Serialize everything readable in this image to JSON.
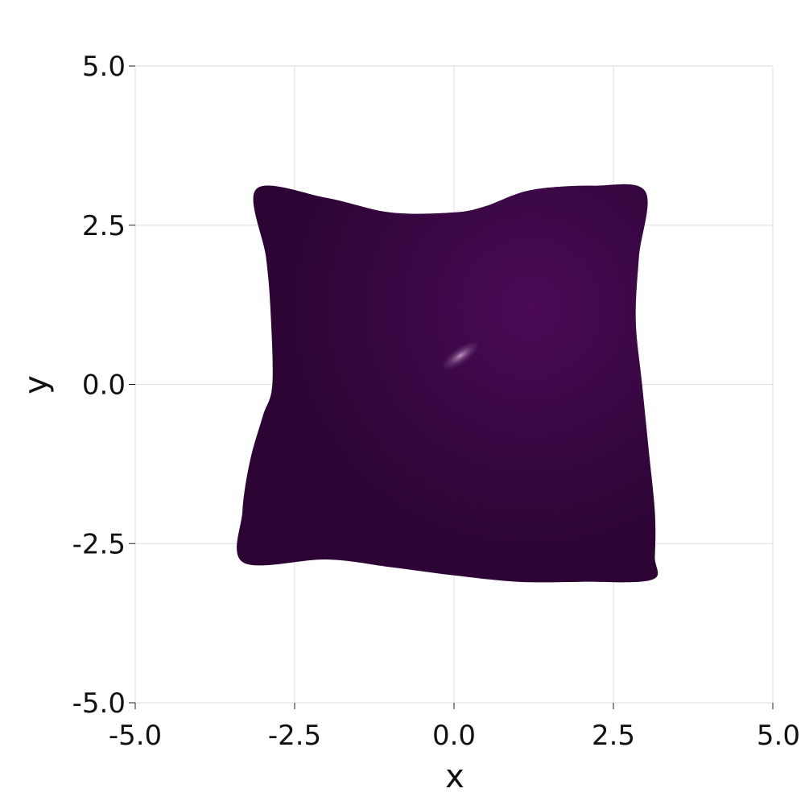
{
  "chart_data": {
    "type": "heatmap",
    "title": "",
    "xlabel": "x",
    "ylabel": "y",
    "xlim": [
      -5.0,
      5.0
    ],
    "ylim": [
      -5.0,
      5.0
    ],
    "xticks": [
      -5.0,
      -2.5,
      0.0,
      2.5,
      5.0
    ],
    "yticks": [
      -5.0,
      -2.5,
      0.0,
      2.5,
      5.0
    ],
    "xtick_labels": [
      "-5.0",
      "-2.5",
      "0.0",
      "2.5",
      "5.0"
    ],
    "ytick_labels": [
      "-5.0",
      "-2.5",
      "0.0",
      "2.5",
      "5.0"
    ],
    "grid": true,
    "legend": "none",
    "colormap": "viridis",
    "surface": {
      "outline": [
        [
          -3.1,
          3.07
        ],
        [
          -2.0,
          2.93
        ],
        [
          -1.0,
          2.7
        ],
        [
          0.0,
          2.7
        ],
        [
          0.5,
          2.8
        ],
        [
          1.2,
          3.05
        ],
        [
          2.2,
          3.12
        ],
        [
          3.0,
          3.03
        ],
        [
          2.9,
          2.0
        ],
        [
          2.85,
          1.0
        ],
        [
          2.95,
          0.0
        ],
        [
          3.05,
          -1.0
        ],
        [
          3.15,
          -2.0
        ],
        [
          3.15,
          -2.7
        ],
        [
          3.1,
          -3.07
        ],
        [
          2.0,
          -3.1
        ],
        [
          1.0,
          -3.1
        ],
        [
          0.0,
          -3.0
        ],
        [
          -1.0,
          -2.87
        ],
        [
          -2.0,
          -2.75
        ],
        [
          -3.3,
          -2.8
        ],
        [
          -3.32,
          -2.0
        ],
        [
          -3.2,
          -1.2
        ],
        [
          -3.0,
          -0.5
        ],
        [
          -2.85,
          0.0
        ],
        [
          -2.88,
          1.2
        ],
        [
          -2.95,
          2.0
        ]
      ],
      "base_color": "#2c0535",
      "glow_center": [
        1.2,
        1.2
      ],
      "glow_color": "#4a0a55",
      "highlight": {
        "center": [
          0.1,
          0.45
        ],
        "color": "#c9a6cc"
      }
    }
  }
}
